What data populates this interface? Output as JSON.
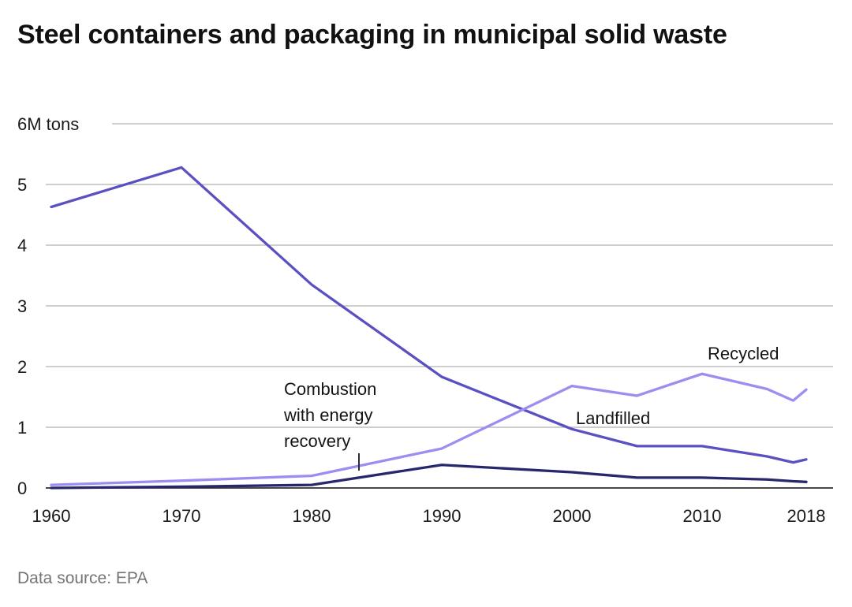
{
  "title": "Steel containers and packaging in municipal solid waste",
  "footer": {
    "source": "Data source: EPA"
  },
  "chart_data": {
    "type": "line",
    "title": "Steel containers and packaging in municipal solid waste",
    "xlabel": "",
    "ylabel": "M tons",
    "x_range": [
      1960,
      2018
    ],
    "y_range": [
      0,
      6
    ],
    "grid": "horizontal",
    "legend_position": "inline-labels",
    "x": [
      1960,
      1970,
      1980,
      1990,
      2000,
      2005,
      2010,
      2015,
      2017,
      2018
    ],
    "x_ticks": [
      "1960",
      "1970",
      "1980",
      "1990",
      "2000",
      "2010",
      "2018"
    ],
    "y_ticks": [
      {
        "value": 0,
        "label": "0"
      },
      {
        "value": 1,
        "label": "1"
      },
      {
        "value": 2,
        "label": "2"
      },
      {
        "value": 3,
        "label": "3"
      },
      {
        "value": 4,
        "label": "4"
      },
      {
        "value": 5,
        "label": "5"
      },
      {
        "value": 6,
        "label": "6M tons"
      }
    ],
    "series": [
      {
        "name": "Landfilled",
        "color": "#5a50c1",
        "values": [
          4.63,
          5.28,
          3.35,
          1.83,
          0.97,
          0.69,
          0.69,
          0.52,
          0.42,
          0.47
        ]
      },
      {
        "name": "Recycled",
        "color": "#9c8df1",
        "values": [
          0.05,
          0.12,
          0.2,
          0.65,
          1.68,
          1.52,
          1.88,
          1.63,
          1.44,
          1.62
        ]
      },
      {
        "name": "Combustion with energy recovery",
        "color": "#28276d",
        "values": [
          0.0,
          0.02,
          0.05,
          0.38,
          0.26,
          0.17,
          0.17,
          0.14,
          0.11,
          0.1
        ]
      }
    ],
    "annotations": {
      "recycled_label": "Recycled",
      "landfilled_label": "Landfilled",
      "combustion_label": "Combustion\nwith energy\nrecovery"
    },
    "colors": {
      "gridline": "#9e9e9e",
      "baseline": "#2e2e2e",
      "text": "#1a1a1a",
      "muted_text": "#757575"
    }
  }
}
